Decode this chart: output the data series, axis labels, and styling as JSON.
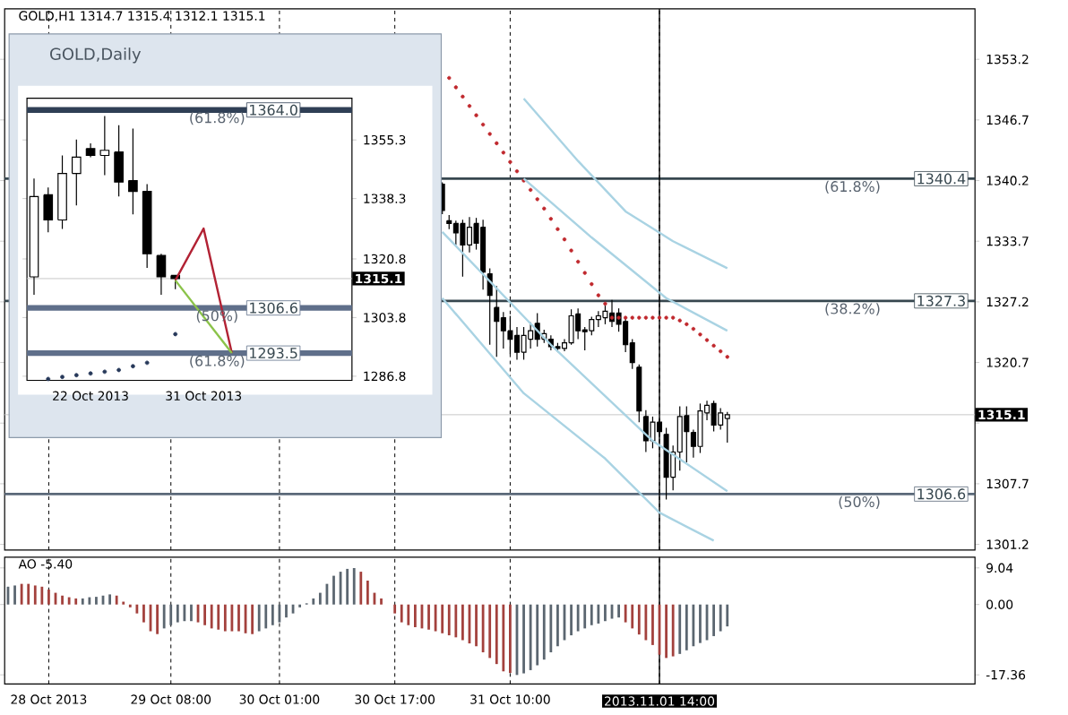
{
  "chart_data": [
    {
      "type": "candlestick",
      "title": "GOLD,H1 1314.7 1315.4 1312.1 1315.1",
      "color": "#000000",
      "tick_labels": "y",
      "grid": "x",
      "categories": [
        null,
        null,
        null,
        null,
        null,
        null,
        "28 Oct 2013",
        null,
        null,
        null,
        null,
        null,
        null,
        null,
        null,
        null,
        null,
        null,
        null,
        null,
        null,
        null,
        null,
        null,
        "29 Oct 08:00",
        null,
        null,
        null,
        null,
        null,
        null,
        null,
        null,
        null,
        null,
        null,
        null,
        null,
        null,
        null,
        "30 Oct 01:00",
        null,
        null,
        null,
        null,
        null,
        null,
        null,
        null,
        null,
        null,
        null,
        null,
        null,
        null,
        null,
        null,
        "30 Oct 17:00",
        null,
        null,
        null,
        null,
        null,
        null,
        null,
        null,
        null,
        null,
        null,
        null,
        null,
        null,
        null,
        null,
        "31 Oct 10:00",
        null,
        null,
        null,
        null,
        null,
        null,
        null,
        null,
        null,
        null,
        null,
        null,
        null,
        null,
        null,
        null,
        null,
        null,
        null,
        null,
        null,
        "2013.11.01 14:00",
        null,
        null,
        null,
        null,
        null,
        null,
        null,
        null,
        null,
        null,
        null,
        null,
        null,
        null,
        null,
        null,
        null,
        null,
        null,
        null,
        null,
        null,
        null,
        null,
        null,
        null,
        null,
        null,
        null,
        null,
        null,
        null,
        null,
        null,
        null,
        null,
        null,
        null,
        null,
        null,
        null,
        null,
        null,
        null,
        null,
        null
      ],
      "ohlc": [
        null,
        null,
        null,
        null,
        null,
        null,
        null,
        null,
        null,
        null,
        null,
        null,
        null,
        null,
        null,
        null,
        null,
        null,
        null,
        null,
        null,
        null,
        null,
        null,
        null,
        null,
        null,
        null,
        null,
        null,
        null,
        null,
        null,
        null,
        null,
        null,
        null,
        null,
        null,
        null,
        null,
        null,
        null,
        null,
        null,
        null,
        null,
        null,
        null,
        null,
        null,
        null,
        null,
        null,
        null,
        null,
        null,
        null,
        null,
        null,
        null,
        null,
        null,
        null,
        [
          1339.8,
          1340.0,
          1336.6,
          1337.0
        ],
        [
          1335.9,
          1336.5,
          1335.0,
          1335.6
        ],
        [
          1335.6,
          1335.9,
          1333.3,
          1334.6
        ],
        [
          1335.6,
          1336.0,
          1329.9,
          1333.3
        ],
        [
          1333.3,
          1336.3,
          1332.5,
          1335.2
        ],
        [
          1335.6,
          1336.2,
          1332.8,
          1333.5
        ],
        [
          1335.2,
          1336.0,
          1328.5,
          1330.4
        ],
        [
          1330.2,
          1330.8,
          1322.6,
          1327.9
        ],
        [
          1326.6,
          1328.9,
          1321.3,
          1325.1
        ],
        [
          1325.5,
          1326.1,
          1322.2,
          1324.1
        ],
        [
          1324.1,
          1325.7,
          1321.6,
          1323.2
        ],
        [
          1323.6,
          1324.5,
          1321.0,
          1321.8
        ],
        [
          1321.8,
          1324.5,
          1321.0,
          1323.6
        ],
        [
          1323.2,
          1325.0,
          1322.2,
          1324.1
        ],
        [
          1324.9,
          1326.0,
          1322.4,
          1323.2
        ],
        [
          1323.2,
          1324.2,
          1322.8,
          1323.8
        ],
        [
          1323.2,
          1323.6,
          1322.0,
          1322.4
        ],
        [
          1322.4,
          1322.8,
          1321.8,
          1322.2
        ],
        [
          1322.2,
          1323.2,
          1321.9,
          1322.8
        ],
        [
          1322.8,
          1326.4,
          1322.6,
          1325.7
        ],
        [
          1325.9,
          1326.5,
          1323.2,
          1324.1
        ],
        [
          1324.2,
          1324.5,
          1322.0,
          1324.0
        ],
        [
          1324.1,
          1325.6,
          1323.6,
          1325.3
        ],
        [
          1325.3,
          1326.2,
          1324.5,
          1325.7
        ],
        [
          1325.5,
          1326.8,
          1324.8,
          1326.2
        ],
        [
          1326.0,
          1327.4,
          1324.5,
          1325.1
        ],
        [
          1326.0,
          1326.5,
          1324.0,
          1324.8
        ],
        [
          1325.1,
          1325.5,
          1321.8,
          1322.6
        ],
        [
          1322.8,
          1323.2,
          1320.0,
          1320.7
        ],
        [
          1320.2,
          1320.5,
          1314.3,
          1315.5
        ],
        [
          1314.9,
          1315.6,
          1311.1,
          1312.3
        ],
        [
          1312.3,
          1314.9,
          1311.5,
          1314.3
        ],
        [
          1314.3,
          1314.6,
          1312.7,
          1313.3
        ],
        [
          1313.0,
          1313.7,
          1306.0,
          1308.4
        ],
        [
          1308.4,
          1311.8,
          1307.0,
          1311.1
        ],
        [
          1311.1,
          1316.0,
          1309.1,
          1314.9
        ],
        [
          1315.0,
          1316.0,
          1310.0,
          1313.3
        ],
        [
          1313.2,
          1313.5,
          1310.5,
          1311.7
        ],
        [
          1311.7,
          1316.3,
          1311.0,
          1315.5
        ],
        [
          1315.3,
          1316.6,
          1314.5,
          1316.1
        ],
        [
          1316.3,
          1316.6,
          1313.3,
          1314.0
        ],
        [
          1314.0,
          1315.8,
          1313.5,
          1315.3
        ],
        [
          1314.7,
          1315.4,
          1312.1,
          1315.1
        ],
        null,
        null,
        null,
        null,
        null,
        null,
        null,
        null,
        null,
        null,
        null,
        null,
        null,
        null,
        null,
        null,
        null,
        null,
        null,
        null,
        null,
        null,
        null,
        null,
        null,
        null,
        null,
        null,
        null,
        null,
        null,
        null,
        null,
        null,
        null,
        null
      ],
      "series": [
        {
          "type": "scatter",
          "marker": "circle",
          "color": "#c0282d",
          "values": [
            null,
            null,
            null,
            null,
            null,
            null,
            null,
            null,
            null,
            null,
            null,
            null,
            null,
            null,
            null,
            null,
            null,
            null,
            null,
            null,
            null,
            null,
            null,
            null,
            null,
            null,
            null,
            null,
            null,
            null,
            null,
            null,
            null,
            null,
            null,
            null,
            null,
            null,
            null,
            null,
            null,
            null,
            null,
            null,
            null,
            null,
            null,
            null,
            null,
            null,
            null,
            null,
            null,
            null,
            null,
            null,
            null,
            null,
            null,
            null,
            null,
            null,
            null,
            null,
            null,
            1351.2,
            1350.2,
            1349.2,
            1348.2,
            1347.2,
            1346.2,
            1345.2,
            1344.2,
            1343.2,
            1342.2,
            1341.2,
            1340.2,
            1339.2,
            1338.2,
            1337.2,
            1336.1,
            1335.0,
            1333.9,
            1332.7,
            1331.5,
            1330.3,
            1329.1,
            1327.9,
            1327.0,
            1325.5,
            1325.5,
            1325.5,
            1325.5,
            1325.5,
            1325.5,
            1325.5,
            1325.5,
            1325.5,
            1325.5,
            1325.2,
            1324.8,
            1324.3,
            1323.7,
            1323.1,
            1322.5,
            1321.9,
            1321.3,
            null,
            null,
            null,
            null,
            null,
            null,
            null,
            null,
            null,
            null,
            null,
            null,
            null,
            null,
            null,
            null,
            null,
            null,
            null,
            null,
            null,
            null,
            null,
            null,
            null,
            null,
            null,
            null,
            null,
            null,
            null,
            null,
            null,
            null,
            null,
            null
          ]
        },
        {
          "type": "line",
          "color": "#a9d3e3",
          "values": [
            null,
            null,
            null,
            null,
            null,
            null,
            null,
            null,
            null,
            null,
            null,
            null,
            null,
            null,
            null,
            null,
            null,
            null,
            null,
            null,
            null,
            null,
            null,
            null,
            null,
            null,
            null,
            null,
            null,
            null,
            null,
            null,
            null,
            null,
            null,
            null,
            null,
            null,
            null,
            null,
            null,
            null,
            null,
            null,
            null,
            null,
            null,
            null,
            null,
            null,
            null,
            null,
            null,
            null,
            null,
            null,
            null,
            null,
            null,
            null,
            null,
            null,
            null,
            null,
            null,
            null,
            null,
            null,
            null,
            null,
            null,
            null,
            null,
            null,
            null,
            null,
            1349.0,
            null,
            null,
            null,
            null,
            null,
            null,
            null,
            1342.3,
            null,
            null,
            null,
            null,
            null,
            null,
            1336.9,
            null,
            null,
            null,
            null,
            null,
            null,
            1333.7,
            null,
            null,
            null,
            null,
            null,
            null,
            null,
            1330.8,
            null,
            null,
            null,
            null,
            null,
            null,
            null,
            null,
            null,
            null,
            null,
            null,
            null,
            null,
            null,
            null,
            null,
            null,
            null,
            null,
            null,
            null,
            null,
            null,
            null,
            null,
            null,
            null,
            null,
            null,
            null,
            null,
            null,
            null,
            null,
            null
          ]
        },
        {
          "type": "line",
          "color": "#a9d3e3",
          "values": [
            null,
            null,
            null,
            null,
            null,
            null,
            null,
            null,
            null,
            null,
            null,
            null,
            null,
            null,
            null,
            null,
            null,
            null,
            null,
            null,
            null,
            null,
            null,
            null,
            null,
            null,
            null,
            null,
            null,
            null,
            null,
            null,
            null,
            null,
            null,
            null,
            null,
            null,
            null,
            null,
            null,
            null,
            null,
            null,
            null,
            null,
            null,
            null,
            null,
            null,
            null,
            null,
            null,
            null,
            null,
            null,
            null,
            null,
            null,
            null,
            null,
            null,
            null,
            null,
            null,
            null,
            null,
            null,
            null,
            null,
            null,
            null,
            null,
            null,
            null,
            null,
            1340.4,
            null,
            null,
            null,
            null,
            null,
            null,
            null,
            null,
            null,
            1334.1,
            null,
            null,
            null,
            null,
            null,
            null,
            null,
            null,
            null,
            null,
            1327.6,
            null,
            null,
            null,
            null,
            null,
            null,
            null,
            null,
            1324.1,
            null,
            null,
            null,
            null,
            null,
            null,
            null,
            null,
            null,
            null,
            null,
            null,
            null,
            null,
            null,
            null,
            null,
            null,
            null,
            null,
            null,
            null,
            null,
            null,
            null,
            null,
            null,
            null,
            null,
            null,
            null,
            null,
            null,
            null,
            null,
            null
          ]
        },
        {
          "type": "line",
          "color": "#a9d3e3",
          "values": [
            null,
            null,
            null,
            null,
            null,
            null,
            null,
            null,
            null,
            null,
            null,
            null,
            null,
            null,
            null,
            null,
            null,
            null,
            null,
            null,
            null,
            null,
            null,
            null,
            null,
            null,
            null,
            null,
            null,
            null,
            null,
            null,
            null,
            null,
            null,
            null,
            null,
            null,
            null,
            null,
            null,
            null,
            null,
            null,
            null,
            null,
            null,
            null,
            null,
            null,
            null,
            null,
            null,
            null,
            null,
            null,
            null,
            null,
            null,
            null,
            null,
            null,
            null,
            null,
            1334.7,
            null,
            null,
            null,
            null,
            null,
            null,
            null,
            null,
            null,
            null,
            null,
            null,
            null,
            null,
            null,
            1322.6,
            null,
            null,
            null,
            null,
            null,
            null,
            null,
            null,
            null,
            null,
            null,
            null,
            null,
            null,
            1312.3,
            null,
            null,
            null,
            null,
            null,
            null,
            null,
            null,
            null,
            null,
            1306.9,
            null,
            null,
            null,
            null,
            null,
            null,
            null,
            null,
            null,
            null,
            null,
            null,
            null,
            null,
            null,
            null,
            null,
            null,
            null,
            null,
            null,
            null,
            null,
            null,
            null,
            null,
            null,
            null,
            null,
            null,
            null,
            null,
            null,
            null,
            null,
            null
          ]
        },
        {
          "type": "line",
          "color": "#a9d3e3",
          "values": [
            null,
            null,
            null,
            null,
            null,
            null,
            null,
            null,
            null,
            null,
            null,
            null,
            null,
            null,
            null,
            null,
            null,
            null,
            null,
            null,
            null,
            null,
            null,
            null,
            null,
            null,
            null,
            null,
            null,
            null,
            null,
            null,
            null,
            null,
            null,
            null,
            null,
            null,
            null,
            null,
            null,
            null,
            null,
            null,
            null,
            null,
            null,
            null,
            null,
            null,
            null,
            null,
            null,
            null,
            null,
            null,
            null,
            null,
            null,
            null,
            null,
            null,
            null,
            null,
            1327.6,
            null,
            null,
            null,
            null,
            null,
            null,
            null,
            null,
            null,
            null,
            null,
            1317.4,
            null,
            null,
            null,
            null,
            null,
            null,
            null,
            null,
            null,
            null,
            null,
            1310.4,
            null,
            null,
            null,
            null,
            null,
            null,
            null,
            1304.6,
            null,
            null,
            null,
            null,
            null,
            null,
            null,
            1301.6,
            null,
            null,
            null,
            null,
            null,
            null,
            null,
            null,
            null,
            null,
            null,
            null,
            null,
            null,
            null,
            null,
            null,
            null,
            null,
            null,
            null,
            null,
            null,
            null,
            null,
            null,
            null,
            null,
            null,
            null,
            null,
            null,
            null,
            null,
            null,
            null,
            null,
            null
          ]
        }
      ],
      "ylim": [
        1300.6,
        1358.6
      ],
      "yticks": [
        1353.2,
        1346.7,
        1340.2,
        1333.7,
        1327.2,
        1320.7,
        {
          "value": 1314.2,
          "label": null
        },
        1307.7,
        1301.2
      ],
      "ref_lines": [
        {
          "axis": "y",
          "value": 1340.4,
          "label": "1340.4",
          "color": "#37474f"
        },
        {
          "axis": "y",
          "value": 1327.3,
          "label": "1327.3",
          "color": "#37474f"
        },
        {
          "axis": "y",
          "value": 1306.6,
          "label": "1306.6",
          "color": "#5a6878"
        },
        {
          "axis": "y",
          "value": 1315.1,
          "label": "1315.1",
          "color": "#c8c8c8"
        },
        {
          "axis": "x",
          "value": "2013.11.01 14:00",
          "color": "#000000"
        }
      ],
      "annotations": [
        {
          "text": "(61.8%)",
          "y": 1340.4
        },
        {
          "text": "(38.2%)",
          "y": 1327.3
        },
        {
          "text": "(50%)",
          "y": 1306.6
        }
      ]
    },
    {
      "type": "bar",
      "title": "AO -5.40",
      "grid": "x",
      "categories": [
        null,
        null,
        null,
        null,
        null,
        null,
        "28 Oct 2013",
        null,
        null,
        null,
        null,
        null,
        null,
        null,
        null,
        null,
        null,
        null,
        null,
        null,
        null,
        null,
        null,
        null,
        "29 Oct 08:00",
        null,
        null,
        null,
        null,
        null,
        null,
        null,
        null,
        null,
        null,
        null,
        null,
        null,
        null,
        null,
        "30 Oct 01:00",
        null,
        null,
        null,
        null,
        null,
        null,
        null,
        null,
        null,
        null,
        null,
        null,
        null,
        null,
        null,
        null,
        "30 Oct 17:00",
        null,
        null,
        null,
        null,
        null,
        null,
        null,
        null,
        null,
        null,
        null,
        null,
        null,
        null,
        null,
        null,
        "31 Oct 10:00",
        null,
        null,
        null,
        null,
        null,
        null,
        null,
        null,
        null,
        null,
        null,
        null,
        null,
        null,
        null,
        null,
        null,
        null,
        null,
        null,
        null,
        "2013.11.01 14:00",
        null,
        null,
        null,
        null,
        null,
        null,
        null,
        null,
        null,
        null,
        null,
        null,
        null,
        null,
        null,
        null,
        null,
        null,
        null,
        null,
        null,
        null,
        null,
        null,
        null,
        null,
        null,
        null,
        null,
        null,
        null,
        null,
        null,
        null,
        null,
        null,
        null,
        null,
        null,
        null,
        null,
        null,
        null,
        null,
        null,
        null
      ],
      "values": [
        4.4,
        4.7,
        5.1,
        5.1,
        4.7,
        4.4,
        3.7,
        2.9,
        2.2,
        1.8,
        1.5,
        1.5,
        1.8,
        1.9,
        2.2,
        2.5,
        2.2,
        0.7,
        -0.7,
        -2.2,
        -4.4,
        -6.6,
        -7.3,
        -5.9,
        -5.1,
        -4.4,
        -4.1,
        -4.1,
        -4.4,
        -5.1,
        -5.9,
        -6.2,
        -6.6,
        -6.6,
        -6.6,
        -7.1,
        -7.3,
        -6.6,
        -5.9,
        -5.1,
        -4.4,
        -3.2,
        -2.2,
        -0.7,
        0.3,
        1.5,
        2.9,
        5.1,
        7.1,
        8.1,
        8.8,
        9.0,
        8.1,
        5.9,
        2.9,
        1.5,
        null,
        -2.2,
        -4.4,
        -5.1,
        -5.6,
        -5.9,
        -6.2,
        -6.6,
        -7.1,
        -7.6,
        -8.1,
        -8.8,
        -9.6,
        -10.3,
        -11.8,
        -13.2,
        -14.7,
        -16.5,
        -16.9,
        -17.4,
        -17.0,
        -16.2,
        -15.0,
        -13.6,
        -11.8,
        -10.3,
        -8.8,
        -7.6,
        -6.6,
        -5.9,
        -5.1,
        -4.7,
        -4.1,
        -3.5,
        -3.2,
        -4.4,
        -5.9,
        -7.4,
        -8.8,
        -10.0,
        -12.4,
        -13.2,
        -12.8,
        -12.2,
        -11.3,
        -10.3,
        -9.5,
        -8.8,
        -7.8,
        -6.6,
        -5.4,
        null,
        null,
        null,
        null,
        null,
        null,
        null,
        null,
        null,
        null,
        null,
        null,
        null,
        null,
        null,
        null,
        null,
        null,
        null,
        null,
        null,
        null,
        null,
        null,
        null,
        null,
        null,
        null,
        null,
        null,
        null,
        null,
        null,
        null,
        null,
        null
      ],
      "colors": [
        "#5b6670",
        "#5b6670",
        "#a3413d",
        "#a3413d",
        "#a3413d",
        "#a3413d",
        "#a3413d",
        "#a3413d",
        "#a3413d",
        "#a3413d",
        "#a3413d",
        "#5b6670",
        "#5b6670",
        "#5b6670",
        "#5b6670",
        "#5b6670",
        "#a3413d",
        "#a3413d",
        "#a3413d",
        "#a3413d",
        "#a3413d",
        "#a3413d",
        "#a3413d",
        "#5b6670",
        "#5b6670",
        "#5b6670",
        "#5b6670",
        "#5b6670",
        "#a3413d",
        "#a3413d",
        "#a3413d",
        "#a3413d",
        "#a3413d",
        "#a3413d",
        "#a3413d",
        "#a3413d",
        "#a3413d",
        "#5b6670",
        "#5b6670",
        "#5b6670",
        "#5b6670",
        "#5b6670",
        "#5b6670",
        "#5b6670",
        "#5b6670",
        "#5b6670",
        "#5b6670",
        "#5b6670",
        "#5b6670",
        "#5b6670",
        "#5b6670",
        "#5b6670",
        "#a3413d",
        "#a3413d",
        "#a3413d",
        "#a3413d",
        "#a3413d",
        "#a3413d",
        "#a3413d",
        "#a3413d",
        "#a3413d",
        "#a3413d",
        "#a3413d",
        "#a3413d",
        "#a3413d",
        "#a3413d",
        "#a3413d",
        "#a3413d",
        "#a3413d",
        "#a3413d",
        "#a3413d",
        "#a3413d",
        "#a3413d",
        "#a3413d",
        "#a3413d",
        "#5b6670",
        "#5b6670",
        "#5b6670",
        "#5b6670",
        "#5b6670",
        "#5b6670",
        "#5b6670",
        "#5b6670",
        "#5b6670",
        "#5b6670",
        "#5b6670",
        "#5b6670",
        "#5b6670",
        "#5b6670",
        "#5b6670",
        "#5b6670",
        "#a3413d",
        "#a3413d",
        "#a3413d",
        "#a3413d",
        "#a3413d",
        "#a3413d",
        "#a3413d",
        "#a3413d",
        "#5b6670",
        "#5b6670",
        "#5b6670",
        "#5b6670",
        "#5b6670",
        "#5b6670",
        "#5b6670",
        "#5b6670",
        null,
        null,
        null,
        null,
        null,
        null,
        null,
        null,
        null,
        null,
        null,
        null,
        null,
        null,
        null,
        null,
        null,
        null,
        null,
        null,
        null,
        null,
        null,
        null,
        null,
        null,
        null,
        null,
        null,
        null,
        null,
        null,
        null,
        null,
        null,
        null
      ],
      "ylim": [
        -19.6,
        11.7
      ],
      "yticks": [
        9.04,
        {
          "value": 0,
          "label": "0.00"
        },
        -17.36
      ],
      "ref_lines": [
        {
          "axis": "x",
          "value": "2013.11.01 14:00",
          "color": "#000000"
        }
      ]
    },
    {
      "type": "candlestick",
      "title": "GOLD,Daily",
      "color": "#000000",
      "categories": [
        null,
        null,
        null,
        null,
        "22 Oct 2013",
        null,
        null,
        null,
        null,
        null,
        null,
        null,
        "31 Oct 2013",
        null,
        null,
        null,
        null,
        null,
        null,
        null,
        null,
        null,
        null
      ],
      "ohlc": [
        [
          1315.6,
          1344.1,
          1310.4,
          1338.9
        ],
        [
          1339.4,
          1341.5,
          1328.5,
          1332.1
        ],
        [
          1332.1,
          1350.8,
          1329.5,
          1345.6
        ],
        [
          1345.6,
          1355.4,
          1336.3,
          1350.3
        ],
        [
          1352.8,
          1354.3,
          1350.3,
          1350.8
        ],
        [
          1350.8,
          1362.2,
          1345.1,
          1352.3
        ],
        [
          1351.8,
          1359.6,
          1338.9,
          1343.1
        ],
        [
          1343.5,
          1358.6,
          1333.7,
          1340.4
        ],
        [
          1340.4,
          1342.5,
          1318.2,
          1322.3
        ],
        [
          1321.8,
          1322.3,
          1310.4,
          1315.6
        ],
        [
          1316.0,
          1316.0,
          1312.0,
          1315.1
        ],
        null,
        null,
        null,
        null,
        null,
        null,
        null,
        null,
        null,
        null,
        null,
        null
      ],
      "series": [
        {
          "type": "scatter",
          "marker": "circle",
          "color": "#263859",
          "values": [
            null,
            1286.0,
            1286.6,
            1287.1,
            1287.6,
            1288.1,
            1288.6,
            1289.7,
            1290.7,
            null,
            1299.0,
            null,
            null,
            null,
            null,
            null,
            null,
            null,
            null,
            null,
            null,
            null,
            null
          ]
        },
        {
          "type": "line",
          "color": "#b22234",
          "values": [
            null,
            null,
            null,
            null,
            null,
            null,
            null,
            null,
            null,
            null,
            1314.6,
            null,
            1329.6,
            null,
            1293.5,
            null,
            null,
            null,
            null,
            null,
            null,
            null,
            null
          ]
        },
        {
          "type": "line",
          "color": "#8bc34a",
          "values": [
            null,
            null,
            null,
            null,
            null,
            null,
            null,
            null,
            null,
            null,
            1314.6,
            null,
            null,
            null,
            1293.5,
            null,
            null,
            null,
            null,
            null,
            null,
            null,
            null
          ]
        }
      ],
      "ylim": [
        1285.6,
        1367.4
      ],
      "yticks": [
        1286.8,
        1303.8,
        1320.8,
        1338.3,
        1355.3
      ],
      "ref_lines": [
        {
          "axis": "y",
          "value": 1364.0,
          "label": "1364.0",
          "color": "#2f3f55"
        },
        {
          "axis": "y",
          "value": 1306.6,
          "label": "1306.6",
          "color": "#5f6f8a"
        },
        {
          "axis": "y",
          "value": 1293.5,
          "label": "1293.5",
          "color": "#5f6f8a"
        },
        {
          "axis": "y",
          "value": 1315.1,
          "label": "1315.1",
          "color": "#c8c8c8"
        }
      ],
      "annotations": [
        {
          "text": "(61.8%)",
          "y": 1364.0
        },
        {
          "text": "(50%)",
          "y": 1306.6
        },
        {
          "text": "(61.8%)",
          "y": 1293.5
        }
      ]
    }
  ]
}
